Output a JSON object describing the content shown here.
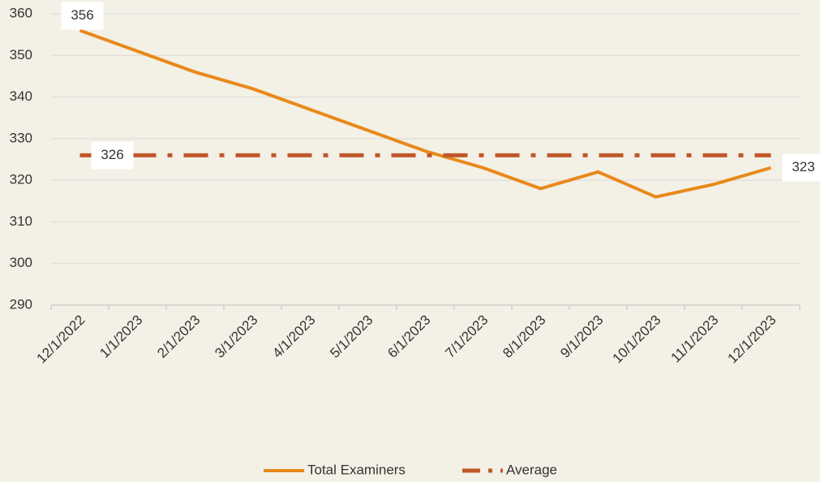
{
  "chart_data": {
    "type": "line",
    "categories": [
      "12/1/2022",
      "1/1/2023",
      "2/1/2023",
      "3/1/2023",
      "4/1/2023",
      "5/1/2023",
      "6/1/2023",
      "7/1/2023",
      "8/1/2023",
      "9/1/2023",
      "10/1/2023",
      "11/1/2023",
      "12/1/2023"
    ],
    "series": [
      {
        "name": "Total Examiners",
        "color": "#e8891a",
        "style": "solid",
        "values": [
          356,
          351,
          346,
          342,
          337,
          332,
          327,
          323,
          318,
          322,
          316,
          319,
          323
        ],
        "value_labels": [
          "356",
          null,
          null,
          null,
          null,
          null,
          null,
          null,
          null,
          null,
          null,
          null,
          "323"
        ]
      },
      {
        "name": "Average",
        "color": "#c0582a",
        "style": "dash-dot",
        "values": [
          326,
          326,
          326,
          326,
          326,
          326,
          326,
          326,
          326,
          326,
          326,
          326,
          326
        ],
        "value_labels": [
          "326",
          null,
          null,
          null,
          null,
          null,
          null,
          null,
          null,
          null,
          null,
          null,
          null
        ]
      }
    ],
    "ylim": [
      290,
      360
    ],
    "yticks": [
      290,
      300,
      310,
      320,
      330,
      340,
      350,
      360
    ],
    "grid": true,
    "legend": "bottom"
  }
}
